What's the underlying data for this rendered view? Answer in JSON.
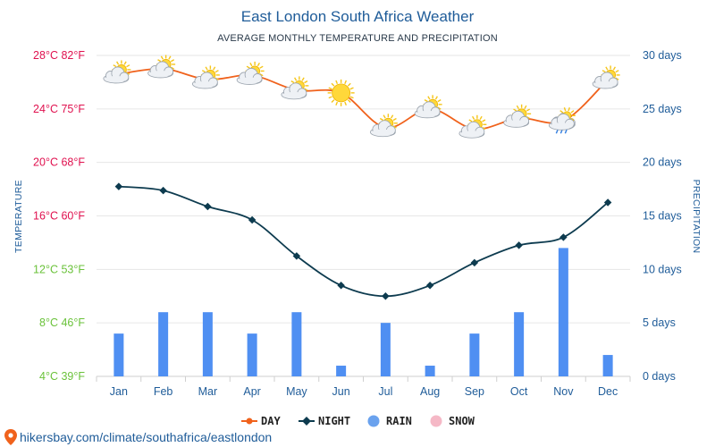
{
  "title": "East London South Africa Weather",
  "subtitle": "AVERAGE MONTHLY TEMPERATURE AND PRECIPITATION",
  "footer": "hikersbay.com/climate/southafrica/eastlondon",
  "colors": {
    "day": "#f0621c",
    "night": "#0d3b4f",
    "rain": "#4f8ff2",
    "rain_legend": "#6aa2ee",
    "snow": "#f5b8c6",
    "title": "#1f5c99",
    "grid": "#e6e6e6"
  },
  "chart_data": {
    "type": "line",
    "categories": [
      "Jan",
      "Feb",
      "Mar",
      "Apr",
      "May",
      "Jun",
      "Jul",
      "Aug",
      "Sep",
      "Oct",
      "Nov",
      "Dec"
    ],
    "xlabel": "",
    "ylabel_left": "TEMPERATURE",
    "ylabel_right": "PRECIPITATION",
    "ylim_left": [
      4,
      28
    ],
    "ylim_right": [
      0,
      30
    ],
    "left_ticks": [
      {
        "value": 28,
        "label": "28°C 82°F",
        "color": "#e0114f"
      },
      {
        "value": 24,
        "label": "24°C 75°F",
        "color": "#e0114f"
      },
      {
        "value": 20,
        "label": "20°C 68°F",
        "color": "#e0114f"
      },
      {
        "value": 16,
        "label": "16°C 60°F",
        "color": "#e0114f"
      },
      {
        "value": 12,
        "label": "12°C 53°F",
        "color": "#6ac23a"
      },
      {
        "value": 8,
        "label": "8°C 46°F",
        "color": "#6ac23a"
      },
      {
        "value": 4,
        "label": "4°C 39°F",
        "color": "#6ac23a"
      }
    ],
    "right_ticks": [
      {
        "value": 30,
        "label": "30 days"
      },
      {
        "value": 25,
        "label": "25 days"
      },
      {
        "value": 20,
        "label": "20 days"
      },
      {
        "value": 15,
        "label": "15 days"
      },
      {
        "value": 10,
        "label": "10 days"
      },
      {
        "value": 5,
        "label": "5 days"
      },
      {
        "value": 0,
        "label": "0 days"
      }
    ],
    "series": [
      {
        "name": "DAY",
        "axis": "left",
        "values": [
          26.6,
          27.0,
          26.2,
          26.5,
          25.4,
          25.2,
          22.6,
          24.0,
          22.5,
          23.3,
          23.1,
          26.2
        ]
      },
      {
        "name": "NIGHT",
        "axis": "left",
        "values": [
          18.2,
          17.9,
          16.7,
          15.7,
          13.0,
          10.8,
          10.0,
          10.8,
          12.5,
          13.8,
          14.4,
          17.0
        ]
      },
      {
        "name": "RAIN",
        "axis": "right",
        "type": "bar",
        "values": [
          4,
          6,
          6,
          4,
          6,
          1,
          5,
          1,
          4,
          6,
          12,
          2
        ]
      }
    ],
    "weather_icons": [
      "partly-cloudy",
      "partly-cloudy",
      "partly-cloudy",
      "partly-cloudy",
      "partly-cloudy",
      "sunny",
      "partly-cloudy",
      "partly-cloudy",
      "partly-cloudy",
      "partly-cloudy",
      "cloudy-rain",
      "partly-cloudy"
    ],
    "legend": [
      {
        "name": "DAY",
        "marker": "line-dot"
      },
      {
        "name": "NIGHT",
        "marker": "line-diamond"
      },
      {
        "name": "RAIN",
        "marker": "circle"
      },
      {
        "name": "SNOW",
        "marker": "circle"
      }
    ],
    "legend_position": "bottom-center",
    "grid": true
  }
}
